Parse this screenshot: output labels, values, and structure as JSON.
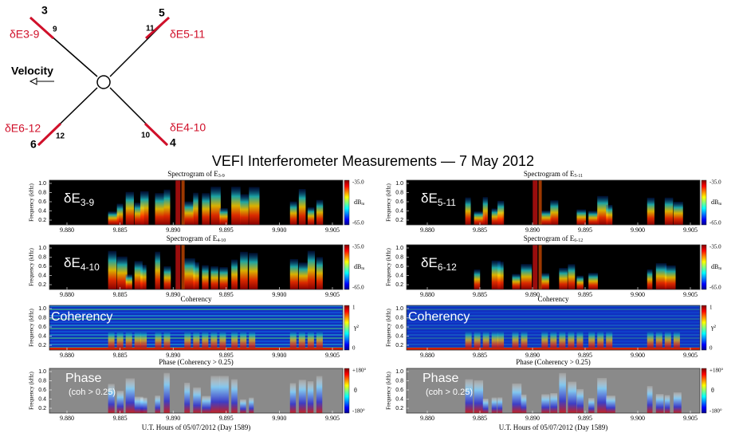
{
  "diagram": {
    "probe_3": "3",
    "probe_9": "9",
    "probe_5": "5",
    "probe_11": "11",
    "probe_6": "6",
    "probe_12": "12",
    "probe_4": "4",
    "probe_10": "10",
    "pair_3_9": "δE3-9",
    "pair_5_11": "δE5-11",
    "pair_6_12": "δE6-12",
    "pair_4_10": "δE4-10",
    "velocity": "Velocity"
  },
  "title": "VEFI Interferometer Measurements — 7 May 2012",
  "x_ticks": [
    "9.880",
    "9.885",
    "9.890",
    "9.895",
    "9.900",
    "9.905"
  ],
  "y_ticks": [
    "1.0",
    "0.8",
    "0.6",
    "0.4",
    "0.2"
  ],
  "y_axis_label": "Frequency (kHz)",
  "x_axis_label": "U.T. Hours of 05/07/2012 (Day 1589)",
  "left_panels": [
    {
      "title": "Spectrogram of E",
      "title_sub": "3-9",
      "inset": "δE",
      "inset_sub": "3-9",
      "cbar_top": "-35.0",
      "cbar_mid": "dB",
      "cbar_mid_sub": "m",
      "cbar_bottom": "-65.0"
    },
    {
      "title": "Spectrogram of E",
      "title_sub": "4-10",
      "inset": "δE",
      "inset_sub": "4-10",
      "cbar_top": "-35.0",
      "cbar_mid": "dB",
      "cbar_mid_sub": "m",
      "cbar_bottom": "-65.0"
    },
    {
      "title": "Coherency",
      "inset": "Coherency",
      "cbar_top": "1",
      "cbar_mid": "γ²",
      "cbar_bottom": "0"
    },
    {
      "title": "Phase (Coherency > 0.25)",
      "inset": "Phase",
      "inset_note": "(coh > 0.25)",
      "cbar_top": "+180°",
      "cbar_mid": "θ",
      "cbar_bottom": "-180°"
    }
  ],
  "right_panels": [
    {
      "title": "Spectrogram of E",
      "title_sub": "5-11",
      "inset": "δE",
      "inset_sub": "5-11",
      "cbar_top": "-35.0",
      "cbar_mid": "dB",
      "cbar_mid_sub": "m",
      "cbar_bottom": "-65.0"
    },
    {
      "title": "Spectrogram of E",
      "title_sub": "6-12",
      "inset": "δE",
      "inset_sub": "6-12",
      "cbar_top": "-35.0",
      "cbar_mid": "dB",
      "cbar_mid_sub": "m",
      "cbar_bottom": "-65.0"
    },
    {
      "title": "Coherency",
      "inset": "Coherency",
      "cbar_top": "1",
      "cbar_mid": "γ²",
      "cbar_bottom": "0"
    },
    {
      "title": "Phase (Coherency > 0.25)",
      "inset": "Phase",
      "inset_note": "(coh > 0.25)",
      "cbar_top": "+180°",
      "cbar_mid": "θ",
      "cbar_bottom": "-180°"
    }
  ]
}
